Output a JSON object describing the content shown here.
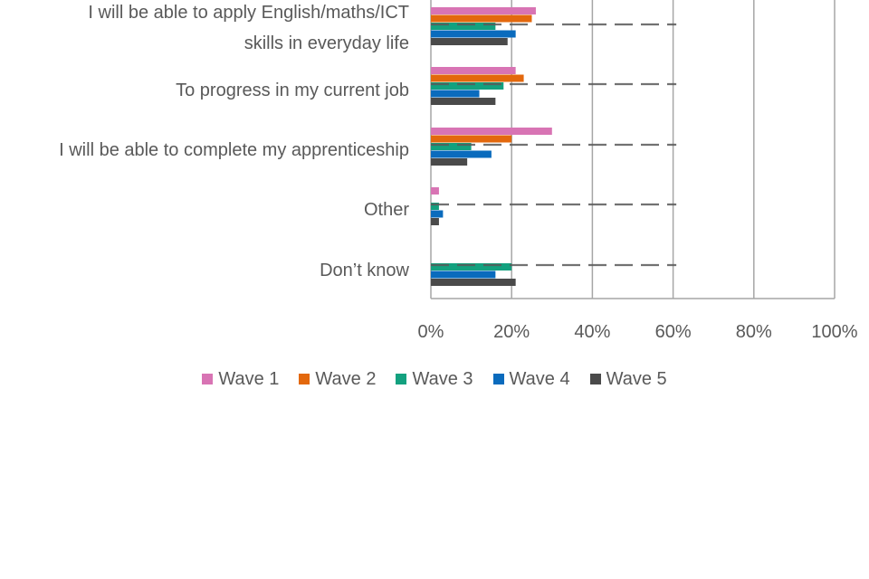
{
  "chart_data": {
    "type": "bar",
    "orientation": "horizontal",
    "title": "",
    "xlabel": "",
    "ylabel": "",
    "xlim": [
      0,
      100
    ],
    "x_ticks": [
      "0%",
      "20%",
      "40%",
      "60%",
      "80%",
      "100%"
    ],
    "grid": "vertical",
    "legend_position": "bottom",
    "categories": [
      {
        "lines": [
          "I will be able to apply English/maths/ICT",
          "skills in everyday life"
        ]
      },
      {
        "lines": [
          "To progress in my current job"
        ]
      },
      {
        "lines": [
          "I will be able to complete my apprenticeship"
        ]
      },
      {
        "lines": [
          "Other"
        ]
      },
      {
        "lines": [
          "Don’t know"
        ]
      }
    ],
    "series": [
      {
        "name": "Wave 1",
        "color": "#d874b4",
        "values": [
          26,
          21,
          30,
          2,
          null
        ]
      },
      {
        "name": "Wave 2",
        "color": "#e3680d",
        "values": [
          25,
          23,
          20,
          0,
          null
        ]
      },
      {
        "name": "Wave 3",
        "color": "#13a17f",
        "values": [
          16,
          18,
          10,
          2,
          20
        ]
      },
      {
        "name": "Wave 4",
        "color": "#0a6bbd",
        "values": [
          21,
          12,
          15,
          3,
          16
        ]
      },
      {
        "name": "Wave 5",
        "color": "#4a4a4a",
        "values": [
          19,
          16,
          9,
          2,
          21
        ]
      }
    ],
    "reference_line_value": 59
  }
}
